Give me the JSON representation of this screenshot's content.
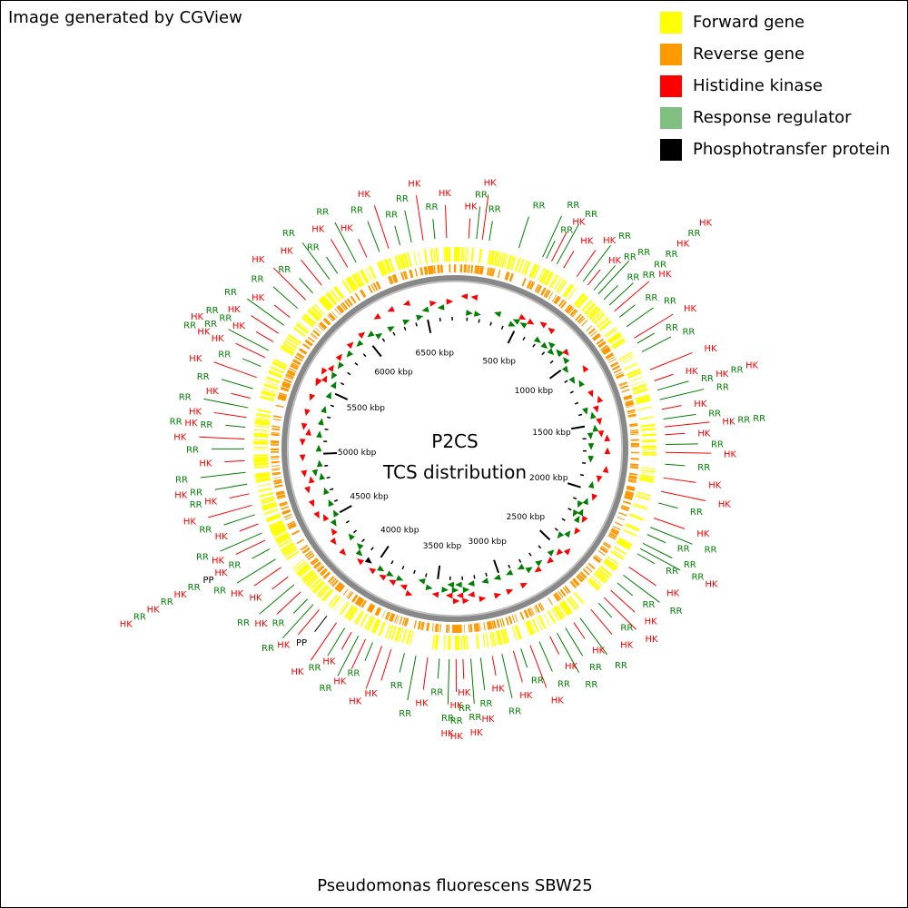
{
  "credit": "Image generated by CGView",
  "footer": "Pseudomonas fluorescens SBW25",
  "center": {
    "line1": "P2CS",
    "line2": "TCS distribution"
  },
  "legend": [
    {
      "label": "Forward gene",
      "color": "#ffff00"
    },
    {
      "label": "Reverse gene",
      "color": "#ff9900"
    },
    {
      "label": "Histidine kinase",
      "color": "#ff0000"
    },
    {
      "label": "Response regulator",
      "color": "#7fbf7f"
    },
    {
      "label": "Phosphotransfer protein",
      "color": "#000000"
    }
  ],
  "colors": {
    "hk": "#ff0000",
    "rr": "#008000",
    "pp": "#000000",
    "forward": "#ffff00",
    "reverse": "#ff9900",
    "backbone": "#888888"
  },
  "genome": {
    "length_kbp": 6722,
    "tick_labels": [
      "500 kbp",
      "1000 kbp",
      "1500 kbp",
      "2000 kbp",
      "2500 kbp",
      "3000 kbp",
      "3500 kbp",
      "4000 kbp",
      "4500 kbp",
      "5000 kbp",
      "5500 kbp",
      "6000 kbp",
      "6500 kbp"
    ]
  },
  "features": [
    {
      "pos": 70,
      "seq": [
        "HK"
      ]
    },
    {
      "pos": 110,
      "seq": [
        "RR"
      ]
    },
    {
      "pos": 140,
      "seq": [
        "HK"
      ]
    },
    {
      "pos": 175,
      "seq": [
        "RR"
      ]
    },
    {
      "pos": 330,
      "seq": [
        "RR"
      ]
    },
    {
      "pos": 460,
      "seq": [
        "RR"
      ]
    },
    {
      "pos": 480,
      "seq": [
        "RR"
      ]
    },
    {
      "pos": 510,
      "seq": [
        "HK"
      ]
    },
    {
      "pos": 540,
      "seq": [
        "RR"
      ]
    },
    {
      "pos": 580,
      "seq": [
        "HK"
      ]
    },
    {
      "pos": 660,
      "seq": [
        "HK"
      ]
    },
    {
      "pos": 700,
      "seq": [
        "RR"
      ]
    },
    {
      "pos": 730,
      "seq": [
        "HK"
      ]
    },
    {
      "pos": 770,
      "seq": [
        "RR"
      ]
    },
    {
      "pos": 800,
      "seq": [
        "RR"
      ]
    },
    {
      "pos": 840,
      "seq": [
        "RR"
      ]
    },
    {
      "pos": 880,
      "seq": [
        "RR",
        "RR",
        "RR",
        "HK",
        "RR",
        "HK"
      ]
    },
    {
      "pos": 920,
      "seq": [
        "HK"
      ]
    },
    {
      "pos": 960,
      "seq": [
        "RR"
      ]
    },
    {
      "pos": 1020,
      "seq": [
        "RR"
      ]
    },
    {
      "pos": 1090,
      "seq": [
        "HK"
      ]
    },
    {
      "pos": 1120,
      "seq": [
        "RR"
      ]
    },
    {
      "pos": 1170,
      "seq": [
        "RR"
      ]
    },
    {
      "pos": 1270,
      "seq": [
        "HK"
      ]
    },
    {
      "pos": 1330,
      "seq": [
        "HK"
      ]
    },
    {
      "pos": 1380,
      "seq": [
        "RR",
        "HK",
        "RR",
        "HK"
      ]
    },
    {
      "pos": 1430,
      "seq": [
        "RR"
      ]
    },
    {
      "pos": 1480,
      "seq": [
        "HK"
      ]
    },
    {
      "pos": 1530,
      "seq": [
        "RR"
      ]
    },
    {
      "pos": 1570,
      "seq": [
        "HK",
        "RR",
        "RR"
      ]
    },
    {
      "pos": 1610,
      "seq": [
        "HK"
      ]
    },
    {
      "pos": 1660,
      "seq": [
        "RR"
      ]
    },
    {
      "pos": 1700,
      "seq": [
        "HK"
      ]
    },
    {
      "pos": 1760,
      "seq": [
        "RR"
      ]
    },
    {
      "pos": 1830,
      "seq": [
        "HK"
      ]
    },
    {
      "pos": 1900,
      "seq": [
        "HK"
      ]
    },
    {
      "pos": 1960,
      "seq": [
        "RR"
      ]
    },
    {
      "pos": 2040,
      "seq": [
        "HK"
      ]
    },
    {
      "pos": 2090,
      "seq": [
        "RR"
      ]
    },
    {
      "pos": 2130,
      "seq": [
        "RR"
      ]
    },
    {
      "pos": 2180,
      "seq": [
        "RR"
      ]
    },
    {
      "pos": 2210,
      "seq": [
        "RR",
        "HK"
      ]
    },
    {
      "pos": 2240,
      "seq": [
        "RR"
      ]
    },
    {
      "pos": 2320,
      "seq": [
        "HK"
      ]
    },
    {
      "pos": 2370,
      "seq": [
        "RR"
      ]
    },
    {
      "pos": 2420,
      "seq": [
        "RR"
      ]
    },
    {
      "pos": 2470,
      "seq": [
        "HK"
      ]
    },
    {
      "pos": 2520,
      "seq": [
        "HK"
      ]
    },
    {
      "pos": 2560,
      "seq": [
        "RR"
      ]
    },
    {
      "pos": 2610,
      "seq": [
        "HK"
      ]
    },
    {
      "pos": 2680,
      "seq": [
        "RR"
      ]
    },
    {
      "pos": 2720,
      "seq": [
        "HK"
      ]
    },
    {
      "pos": 2770,
      "seq": [
        "RR"
      ]
    },
    {
      "pos": 2820,
      "seq": [
        "RR"
      ]
    },
    {
      "pos": 2860,
      "seq": [
        "HK"
      ]
    },
    {
      "pos": 2920,
      "seq": [
        "RR"
      ]
    },
    {
      "pos": 2970,
      "seq": [
        "HK"
      ]
    },
    {
      "pos": 3020,
      "seq": [
        "RR"
      ]
    },
    {
      "pos": 3060,
      "seq": [
        "HK"
      ]
    },
    {
      "pos": 3120,
      "seq": [
        "RR"
      ]
    },
    {
      "pos": 3170,
      "seq": [
        "HK"
      ]
    },
    {
      "pos": 3230,
      "seq": [
        "RR",
        "HK"
      ]
    },
    {
      "pos": 3280,
      "seq": [
        "RR",
        "HK"
      ]
    },
    {
      "pos": 3320,
      "seq": [
        "HK",
        "RR"
      ]
    },
    {
      "pos": 3355,
      "seq": [
        "HK",
        "RR",
        "HK"
      ]
    },
    {
      "pos": 3390,
      "seq": [
        "RR",
        "HK"
      ]
    },
    {
      "pos": 3440,
      "seq": [
        "RR"
      ]
    },
    {
      "pos": 3500,
      "seq": [
        "HK"
      ]
    },
    {
      "pos": 3560,
      "seq": [
        "RR"
      ]
    },
    {
      "pos": 3620,
      "seq": [
        "RR"
      ]
    },
    {
      "pos": 3690,
      "seq": [
        "HK"
      ]
    },
    {
      "pos": 3740,
      "seq": [
        "HK"
      ]
    },
    {
      "pos": 3790,
      "seq": [
        "RR"
      ]
    },
    {
      "pos": 3830,
      "seq": [
        "HK"
      ]
    },
    {
      "pos": 3870,
      "seq": [
        "RR"
      ]
    },
    {
      "pos": 3910,
      "seq": [
        "HK"
      ]
    },
    {
      "pos": 3950,
      "seq": [
        "RR"
      ]
    },
    {
      "pos": 4000,
      "seq": [
        "HK"
      ]
    },
    {
      "pos": 4060,
      "seq": [
        "PP"
      ]
    },
    {
      "pos": 4110,
      "seq": [
        "HK"
      ]
    },
    {
      "pos": 4150,
      "seq": [
        "RR"
      ]
    },
    {
      "pos": 4190,
      "seq": [
        "RR"
      ]
    },
    {
      "pos": 4240,
      "seq": [
        "HK"
      ]
    },
    {
      "pos": 4290,
      "seq": [
        "RR"
      ]
    },
    {
      "pos": 4340,
      "seq": [
        "HK"
      ]
    },
    {
      "pos": 4400,
      "seq": [
        "HK"
      ]
    },
    {
      "pos": 4450,
      "seq": [
        "RR"
      ]
    },
    {
      "pos": 4510,
      "seq": [
        "RR",
        "HK",
        "PP",
        "RR",
        "HK",
        "RR",
        "HK",
        "RR",
        "HK"
      ]
    },
    {
      "pos": 4560,
      "seq": [
        "HK"
      ]
    },
    {
      "pos": 4600,
      "seq": [
        "RR"
      ]
    },
    {
      "pos": 4650,
      "seq": [
        "HK"
      ]
    },
    {
      "pos": 4700,
      "seq": [
        "RR"
      ]
    },
    {
      "pos": 4750,
      "seq": [
        "HK"
      ]
    },
    {
      "pos": 4810,
      "seq": [
        "HK",
        "RR"
      ]
    },
    {
      "pos": 4860,
      "seq": [
        "RR",
        "HK"
      ]
    },
    {
      "pos": 4920,
      "seq": [
        "RR"
      ]
    },
    {
      "pos": 4980,
      "seq": [
        "HK"
      ]
    },
    {
      "pos": 5040,
      "seq": [
        "RR"
      ]
    },
    {
      "pos": 5090,
      "seq": [
        "HK"
      ]
    },
    {
      "pos": 5150,
      "seq": [
        "RR",
        "HK",
        "RR"
      ]
    },
    {
      "pos": 5200,
      "seq": [
        "HK"
      ]
    },
    {
      "pos": 5250,
      "seq": [
        "RR"
      ]
    },
    {
      "pos": 5300,
      "seq": [
        "HK"
      ]
    },
    {
      "pos": 5350,
      "seq": [
        "RR"
      ]
    },
    {
      "pos": 5410,
      "seq": [
        "HK"
      ]
    },
    {
      "pos": 5470,
      "seq": [
        "RR"
      ]
    },
    {
      "pos": 5520,
      "seq": [
        "HK",
        "HK",
        "RR"
      ]
    },
    {
      "pos": 5560,
      "seq": [
        "RR",
        "HK"
      ]
    },
    {
      "pos": 5610,
      "seq": [
        "HK",
        "RR",
        "RR"
      ]
    },
    {
      "pos": 5660,
      "seq": [
        "HK"
      ]
    },
    {
      "pos": 5710,
      "seq": [
        "RR"
      ]
    },
    {
      "pos": 5760,
      "seq": [
        "HK"
      ]
    },
    {
      "pos": 5820,
      "seq": [
        "RR"
      ]
    },
    {
      "pos": 5880,
      "seq": [
        "HK"
      ]
    },
    {
      "pos": 5930,
      "seq": [
        "RR"
      ]
    },
    {
      "pos": 5990,
      "seq": [
        "HK"
      ]
    },
    {
      "pos": 6040,
      "seq": [
        "RR"
      ]
    },
    {
      "pos": 6090,
      "seq": [
        "RR"
      ]
    },
    {
      "pos": 6150,
      "seq": [
        "HK"
      ]
    },
    {
      "pos": 6200,
      "seq": [
        "RR"
      ]
    },
    {
      "pos": 6260,
      "seq": [
        "HK"
      ]
    },
    {
      "pos": 6330,
      "seq": [
        "RR"
      ]
    },
    {
      "pos": 6380,
      "seq": [
        "HK"
      ]
    },
    {
      "pos": 6440,
      "seq": [
        "RR"
      ]
    },
    {
      "pos": 6500,
      "seq": [
        "RR"
      ]
    },
    {
      "pos": 6560,
      "seq": [
        "HK"
      ]
    },
    {
      "pos": 6620,
      "seq": [
        "RR"
      ]
    },
    {
      "pos": 6680,
      "seq": [
        "HK"
      ]
    }
  ]
}
